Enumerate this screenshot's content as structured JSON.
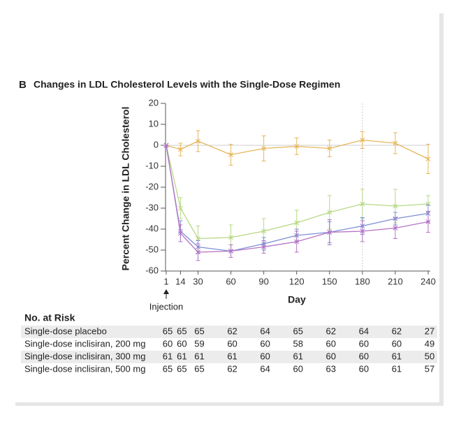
{
  "chart_data": {
    "type": "line",
    "panel_label": "B",
    "title": "Changes in LDL Cholesterol Levels with the Single-Dose Regimen",
    "x_label": "Day",
    "y_label": "Percent Change in LDL Cholesterol",
    "annotation": "Injection",
    "x": [
      1,
      14,
      30,
      60,
      90,
      120,
      150,
      180,
      210,
      240
    ],
    "xlim": [
      1,
      240
    ],
    "xticks": [
      1,
      14,
      30,
      60,
      90,
      120,
      150,
      180,
      210,
      240
    ],
    "ylim": [
      -60,
      20
    ],
    "yticks": [
      -60,
      -50,
      -40,
      -30,
      -20,
      -10,
      0,
      10,
      20
    ],
    "reference_x": 180,
    "series": [
      {
        "color": "#e6b65c",
        "values": [
          0,
          -2,
          2,
          -4.5,
          -1.5,
          -0.5,
          -1.5,
          2.5,
          1,
          -6.5
        ],
        "errors": [
          0,
          3,
          5,
          5,
          6,
          4,
          4,
          4,
          5,
          7
        ]
      },
      {
        "color": "#b7d884",
        "values": [
          0,
          -30,
          -44.5,
          -44,
          -41,
          -37,
          -32,
          -28,
          -29,
          -28
        ],
        "errors": [
          0,
          5,
          6,
          6,
          6,
          6,
          8,
          7,
          8,
          4
        ]
      },
      {
        "color": "#7d8fd6",
        "values": [
          0,
          -41,
          -48.5,
          -50.5,
          -47,
          -43,
          -41.5,
          -38.5,
          -35,
          -32.5
        ],
        "errors": [
          0,
          5,
          3,
          3,
          3,
          3,
          5,
          4,
          3,
          4
        ]
      },
      {
        "color": "#b472c4",
        "values": [
          0,
          -42,
          -51,
          -50.5,
          -48.5,
          -46,
          -41.5,
          -41,
          -39.5,
          -36.5
        ],
        "errors": [
          0,
          4,
          4,
          3,
          3,
          5,
          6,
          5,
          5,
          5
        ]
      }
    ]
  },
  "risk_table": {
    "title": "No. at Risk",
    "rows": [
      {
        "label": "Single-dose placebo",
        "values": [
          65,
          65,
          65,
          62,
          64,
          65,
          62,
          64,
          62,
          27
        ]
      },
      {
        "label": "Single-dose inclisiran, 200 mg",
        "values": [
          60,
          60,
          59,
          60,
          60,
          58,
          60,
          60,
          60,
          49
        ]
      },
      {
        "label": "Single-dose inclisiran, 300 mg",
        "values": [
          61,
          61,
          61,
          61,
          60,
          61,
          60,
          60,
          61,
          50
        ]
      },
      {
        "label": "Single-dose inclisiran, 500 mg",
        "values": [
          65,
          65,
          65,
          62,
          64,
          60,
          63,
          60,
          61,
          57
        ]
      }
    ]
  }
}
